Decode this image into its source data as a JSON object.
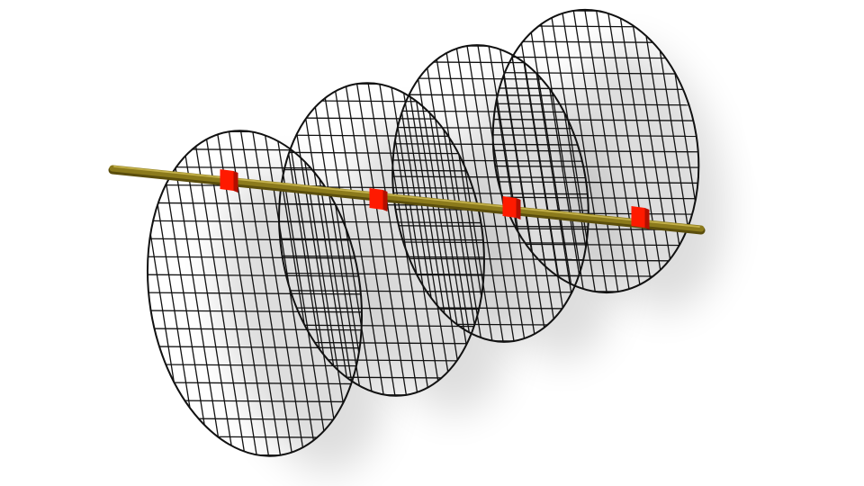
{
  "scene": {
    "name": "wire-mesh-discs-on-rod",
    "disc_count": 4,
    "grid_cells_across": 18,
    "colors": {
      "background": "#ffffff",
      "mesh_line": "#111111",
      "rod_body": "#8b7a1c",
      "rod_highlight": "#c3b04a",
      "rod_shadow": "#5a4d0c",
      "collar": "#ff1a00",
      "collar_dark": "#b30f00",
      "shadow": "#000000"
    }
  }
}
